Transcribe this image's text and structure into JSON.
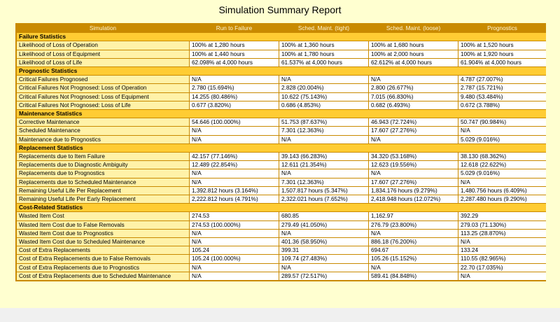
{
  "title": "Simulation Summary Report",
  "columns": [
    "Simulation",
    "Run to Failure",
    "Sched. Maint. (tight)",
    "Sched. Maint. (loose)",
    "Prognostics"
  ],
  "sections": [
    {
      "name": "Failure Statistics",
      "rows": [
        {
          "label": "Likelihood of Loss of Operation",
          "values": [
            "100% at 1,280 hours",
            "100% at 1,360 hours",
            "100% at 1,680 hours",
            "100% at 1,520 hours"
          ]
        },
        {
          "label": "Likelihood of Loss of Equipment",
          "values": [
            "100% at 1,440 hours",
            "100% at 1,780 hours",
            "100% at 2,000 hours",
            "100% at 1,920 hours"
          ]
        },
        {
          "label": "Likelihood of Loss of Life",
          "values": [
            "62.098% at 4,000 hours",
            "61.537% at 4,000 hours",
            "62.612% at 4,000 hours",
            "61.904% at 4,000 hours"
          ]
        }
      ]
    },
    {
      "name": "Prognostic Statistics",
      "rows": [
        {
          "label": "Critical Failures Prognosed",
          "values": [
            "N/A",
            "N/A",
            "N/A",
            "4.787 (27.007%)"
          ]
        },
        {
          "label": "Critical Failures Not Prognosed: Loss of Operation",
          "values": [
            "2.780 (15.694%)",
            "2.828 (20.004%)",
            "2.800 (26.677%)",
            "2.787 (15.721%)"
          ]
        },
        {
          "label": "Critical Failures Not Prognosed: Loss of Equipment",
          "values": [
            "14.255 (80.486%)",
            "10.622 (75.143%)",
            "7.015 (66.830%)",
            "9.480 (53.484%)"
          ]
        },
        {
          "label": "Critical Failures Not Prognosed: Loss of Life",
          "values": [
            "0.677 (3.820%)",
            "0.686 (4.853%)",
            "0.682 (6.493%)",
            "0.672 (3.788%)"
          ]
        }
      ]
    },
    {
      "name": "Maintenance Statistics",
      "rows": [
        {
          "label": "Corrective Maintenance",
          "values": [
            "54.646 (100.000%)",
            "51.753 (87.637%)",
            "46.943 (72.724%)",
            "50.747 (90.984%)"
          ]
        },
        {
          "label": "Scheduled Maintenance",
          "values": [
            "N/A",
            "7.301 (12.363%)",
            "17.607 (27.276%)",
            "N/A"
          ]
        },
        {
          "label": "Maintenance due to Prognostics",
          "values": [
            "N/A",
            "N/A",
            "N/A",
            "5.029 (9.016%)"
          ]
        }
      ]
    },
    {
      "name": "Replacement Statistics",
      "rows": [
        {
          "label": "Replacements due to Item Failure",
          "values": [
            "42.157 (77.146%)",
            "39.143 (66.283%)",
            "34.320 (53.168%)",
            "38.130 (68.362%)"
          ]
        },
        {
          "label": "Replacements due to Diagnostic Ambiguity",
          "values": [
            "12.489 (22.854%)",
            "12.611 (21.354%)",
            "12.623 (19.556%)",
            "12.618 (22.622%)"
          ]
        },
        {
          "label": "Replacements due to Prognostics",
          "values": [
            "N/A",
            "N/A",
            "N/A",
            "5.029 (9.016%)"
          ]
        },
        {
          "label": "Replacements due to Scheduled Maintenance",
          "values": [
            "N/A",
            "7.301 (12.363%)",
            "17.607 (27.276%)",
            "N/A"
          ]
        },
        {
          "label": "Remaining Useful Life Per Replacement",
          "values": [
            "1,392.812 hours (3.164%)",
            "1,507.817 hours (5.347%)",
            "1,834.176 hours (9.279%)",
            "1,480.756 hours (6.409%)"
          ]
        },
        {
          "label": "Remaining Useful Life Per Early Replacement",
          "values": [
            "2,222.812 hours (4.791%)",
            "2,322.021 hours (7.652%)",
            "2,418.948 hours (12.072%)",
            "2,287.480 hours (9.290%)"
          ]
        }
      ]
    },
    {
      "name": "Cost-Related Statistics",
      "rows": [
        {
          "label": "Wasted Item Cost",
          "values": [
            "274.53",
            "680.85",
            "1,162.97",
            "392.29"
          ]
        },
        {
          "label": "Wasted Item Cost due to False Removals",
          "values": [
            "274.53 (100.000%)",
            "279.49 (41.050%)",
            "276.79 (23.800%)",
            "279.03 (71.130%)"
          ]
        },
        {
          "label": "Wasted Item Cost due to Prognostics",
          "values": [
            "N/A",
            "N/A",
            "N/A",
            "113.25 (28.870%)"
          ]
        },
        {
          "label": "Wasted Item Cost due to Scheduled Maintenance",
          "values": [
            "N/A",
            "401.36 (58.950%)",
            "886.18 (76.200%)",
            "N/A"
          ]
        },
        {
          "label": "Cost of Extra Replacements",
          "values": [
            "105.24",
            "399.31",
            "694.67",
            "133.24"
          ]
        },
        {
          "label": "Cost of Extra Replacements due to False Removals",
          "values": [
            "105.24 (100.000%)",
            "109.74 (27.483%)",
            "105.26 (15.152%)",
            "110.55 (82.965%)"
          ]
        },
        {
          "label": "Cost of Extra Replacements due to Prognostics",
          "values": [
            "N/A",
            "N/A",
            "N/A",
            "22.70 (17.035%)"
          ]
        },
        {
          "label": "Cost of Extra Replacements due to Scheduled Maintenance",
          "values": [
            "N/A",
            "289.57 (72.517%)",
            "589.41 (84.848%)",
            "N/A"
          ]
        }
      ]
    }
  ]
}
